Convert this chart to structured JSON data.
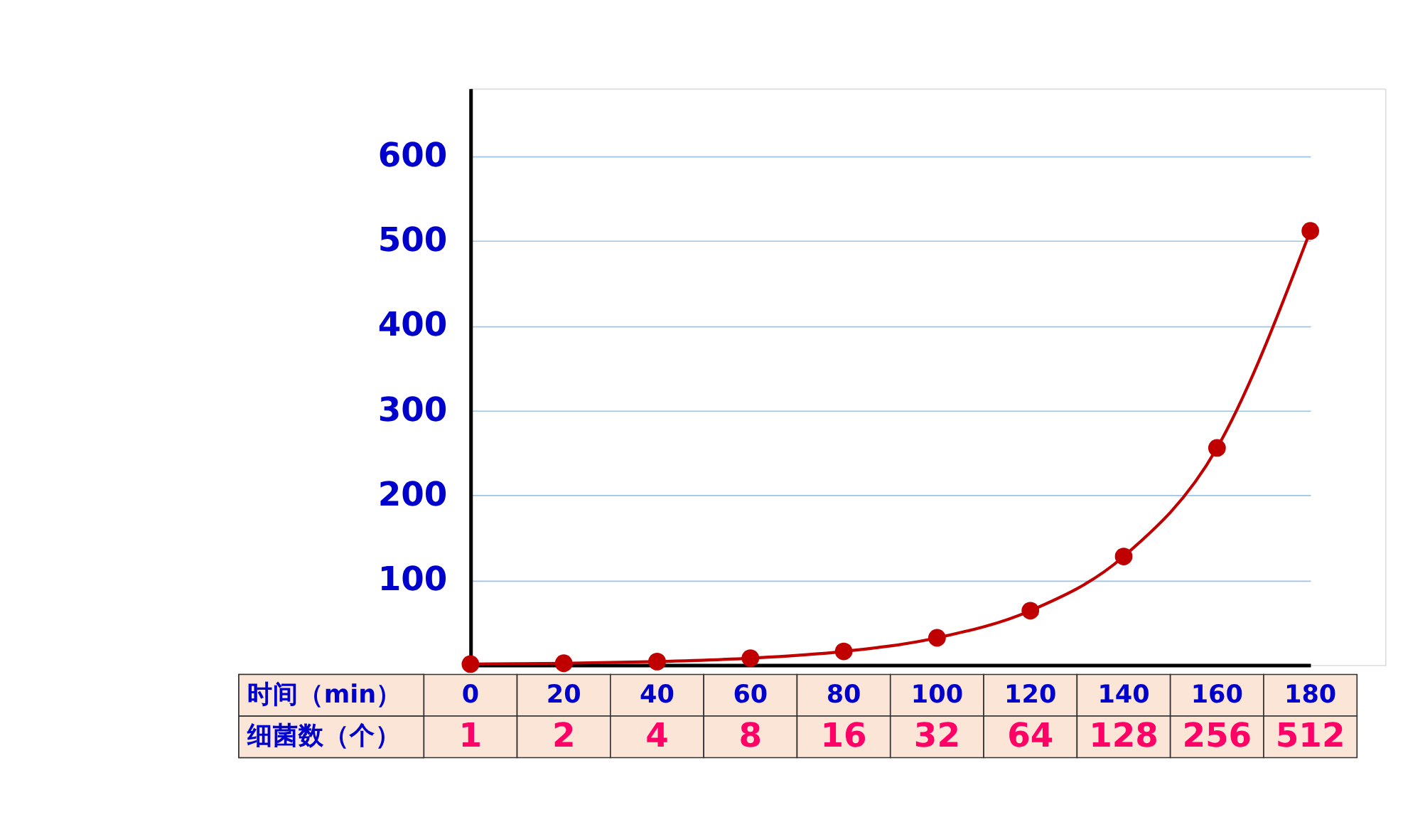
{
  "chart_data": {
    "type": "line",
    "xlabel": "时间（min）",
    "ylabel": "细菌数（个）",
    "categories": [
      "0",
      "20",
      "40",
      "60",
      "80",
      "100",
      "120",
      "140",
      "160",
      "180"
    ],
    "values": [
      1,
      2,
      4,
      8,
      16,
      32,
      64,
      128,
      256,
      512
    ],
    "color": "#c00000",
    "ylim": [
      0,
      680
    ],
    "yticks": [
      {
        "value": 0,
        "label": null
      },
      100,
      200,
      300,
      400,
      500,
      600
    ],
    "grid": "y",
    "marker": "circle",
    "data_labels": true
  }
}
